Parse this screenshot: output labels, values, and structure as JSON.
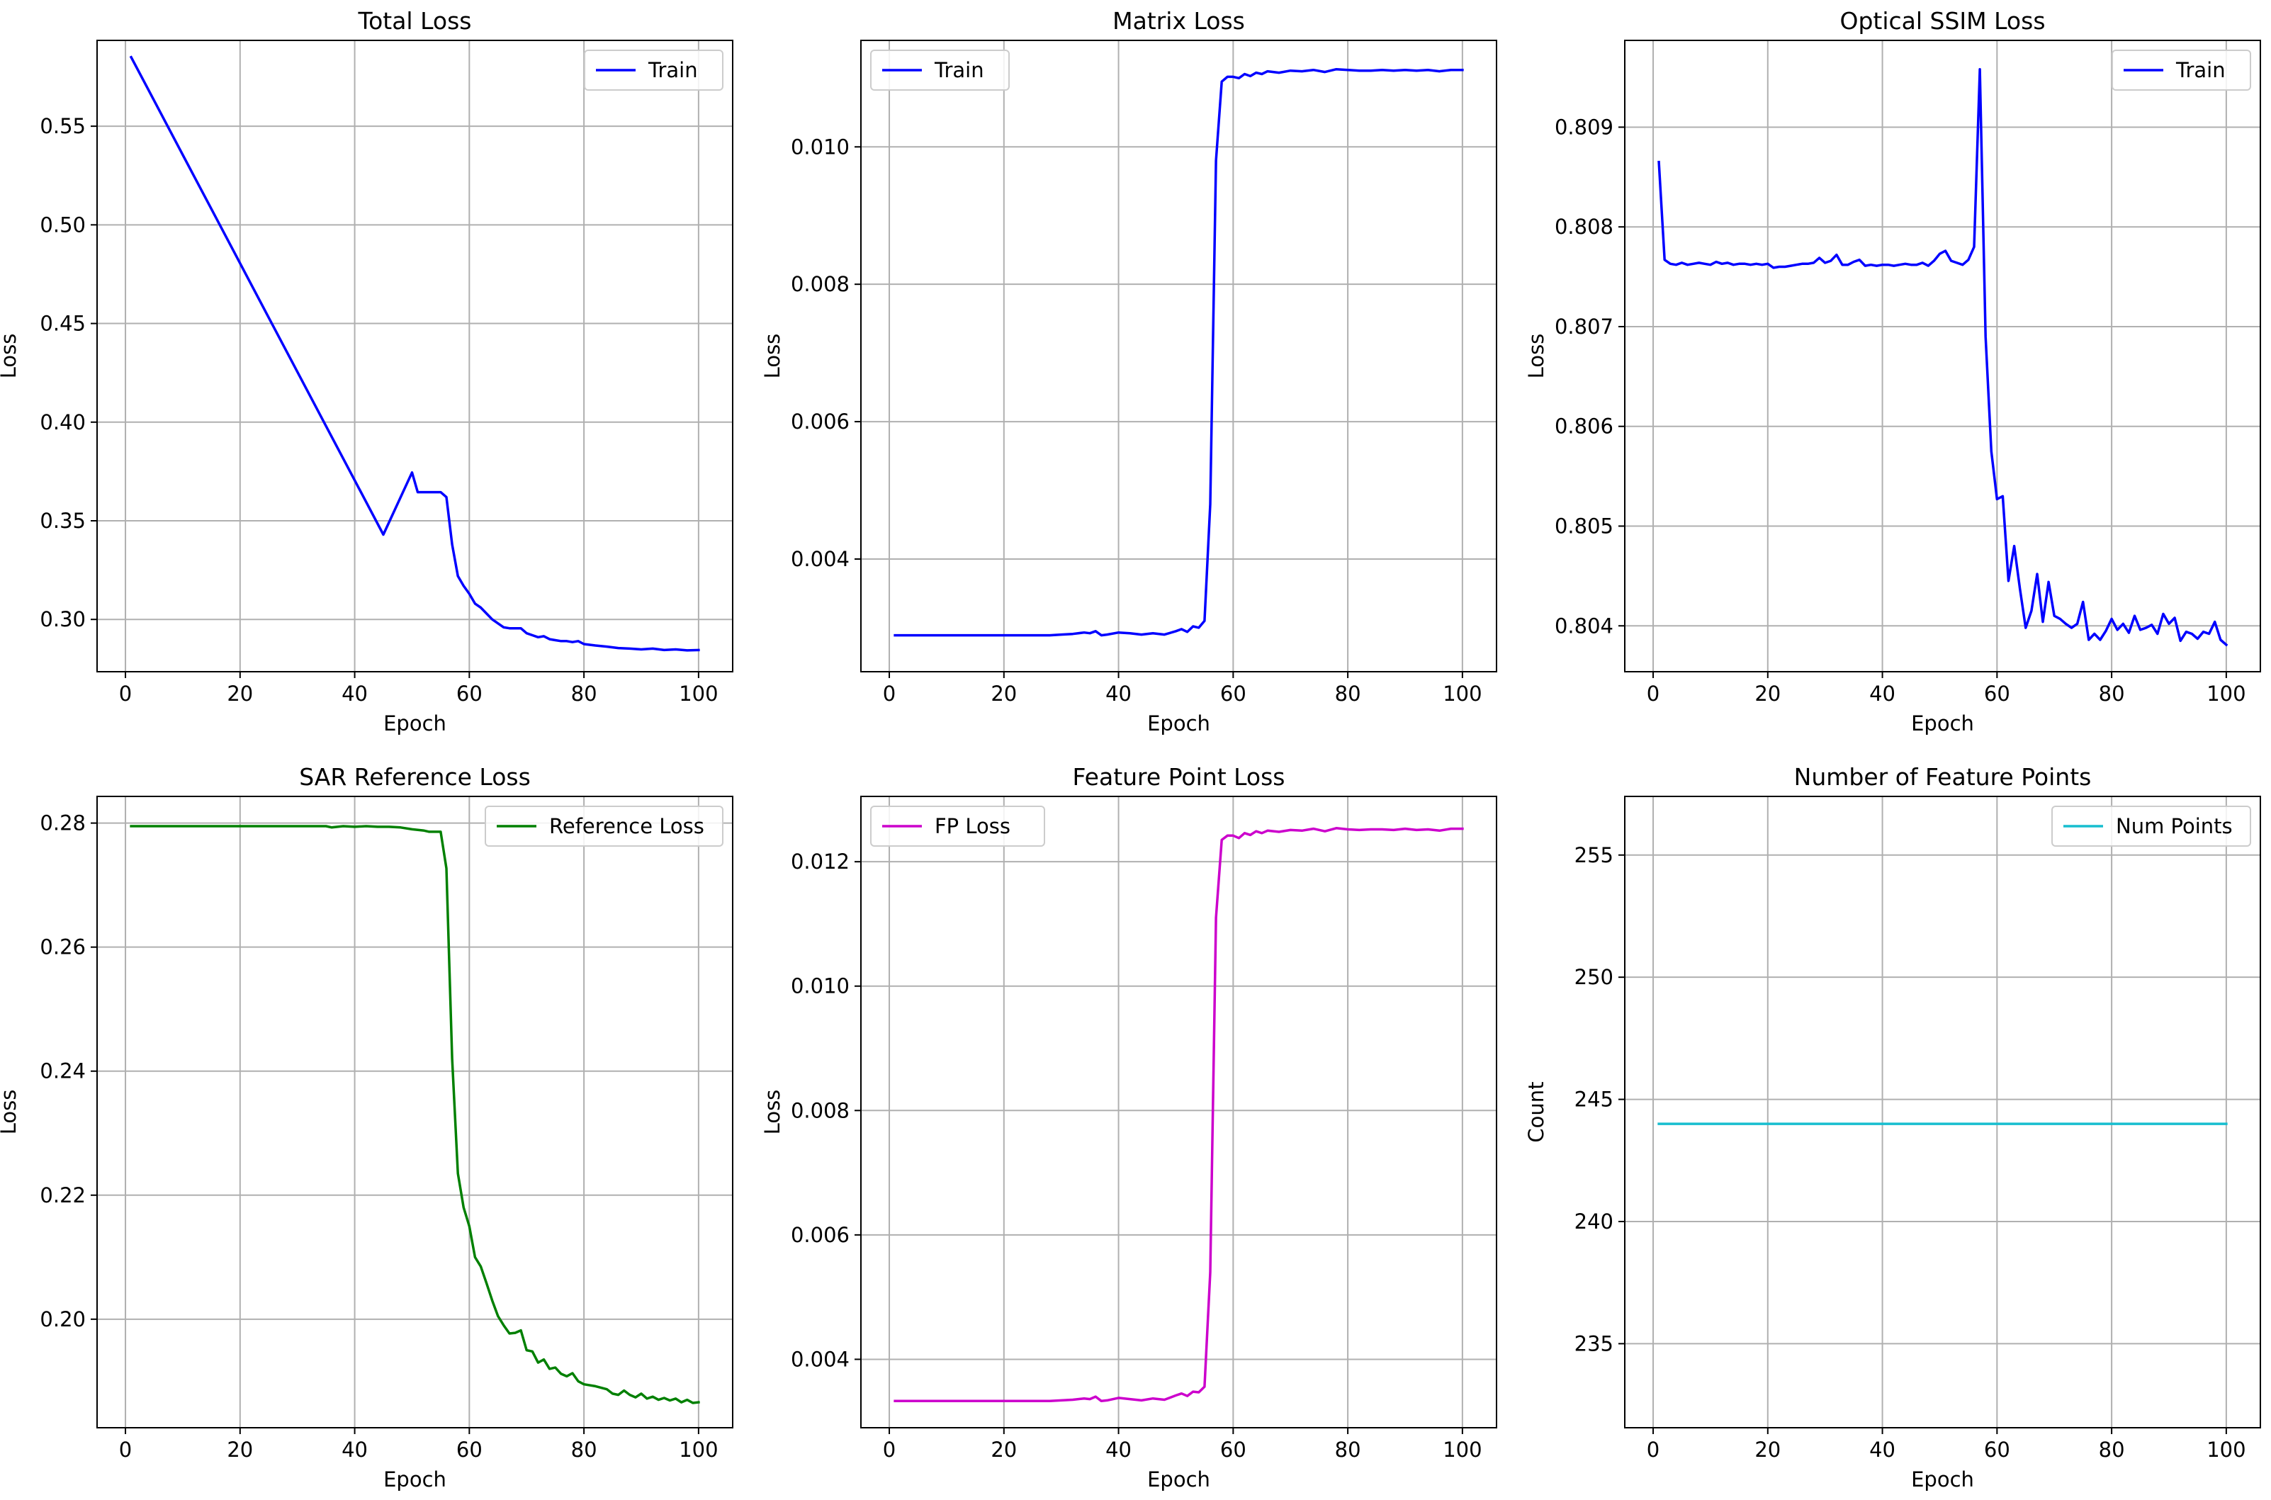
{
  "figure": {
    "background": "#ffffff"
  },
  "chart_data": [
    {
      "type": "line",
      "title": "Total Loss",
      "xlabel": "Epoch",
      "ylabel": "Loss",
      "xlim": [
        -4.95,
        105.95
      ],
      "ylim": [
        0.2735,
        0.5935
      ],
      "xticks": [
        0,
        20,
        40,
        60,
        80,
        100
      ],
      "yticks": [
        0.3,
        0.35,
        0.4,
        0.45,
        0.5,
        0.55
      ],
      "ytick_labels": [
        "0.30",
        "0.35",
        "0.40",
        "0.45",
        "0.50",
        "0.55"
      ],
      "grid": true,
      "legend_position": "top-right",
      "series": [
        {
          "name": "Train",
          "color": "#0000ff",
          "x": [
            1,
            5,
            10,
            15,
            20,
            25,
            30,
            35,
            40,
            45,
            50,
            51,
            52,
            53,
            54,
            55,
            56,
            57,
            58,
            59,
            60,
            61,
            62,
            63,
            64,
            65,
            66,
            67,
            68,
            69,
            70,
            71,
            72,
            73,
            74,
            75,
            76,
            77,
            78,
            79,
            80,
            82,
            84,
            86,
            88,
            90,
            92,
            94,
            96,
            98,
            100
          ],
          "y": [
            0.585,
            0.563,
            0.5355,
            0.508,
            0.4805,
            0.453,
            0.4255,
            0.398,
            0.3705,
            0.343,
            0.3745,
            0.3645,
            0.3645,
            0.3645,
            0.3645,
            0.3645,
            0.362,
            0.338,
            0.322,
            0.317,
            0.313,
            0.308,
            0.306,
            0.303,
            0.3,
            0.298,
            0.296,
            0.2955,
            0.2955,
            0.2955,
            0.293,
            0.292,
            0.291,
            0.2915,
            0.29,
            0.2895,
            0.289,
            0.289,
            0.2885,
            0.289,
            0.2875,
            0.2868,
            0.2862,
            0.2855,
            0.2852,
            0.2848,
            0.2852,
            0.2845,
            0.2848,
            0.2843,
            0.2845
          ]
        }
      ]
    },
    {
      "type": "line",
      "title": "Matrix Loss",
      "xlabel": "Epoch",
      "ylabel": "Loss",
      "xlim": [
        -4.95,
        105.95
      ],
      "ylim": [
        0.00236,
        0.01155
      ],
      "xticks": [
        0,
        20,
        40,
        60,
        80,
        100
      ],
      "yticks": [
        0.004,
        0.006,
        0.008,
        0.01
      ],
      "ytick_labels": [
        "0.004",
        "0.006",
        "0.008",
        "0.010"
      ],
      "grid": true,
      "legend_position": "top-left",
      "series": [
        {
          "name": "Train",
          "color": "#0000ff",
          "x": [
            1,
            5,
            10,
            15,
            20,
            25,
            28,
            30,
            32,
            34,
            35,
            36,
            37,
            38,
            40,
            42,
            44,
            46,
            48,
            50,
            51,
            52,
            53,
            54,
            55,
            56,
            57,
            58,
            59,
            60,
            61,
            62,
            63,
            64,
            65,
            66,
            68,
            70,
            72,
            74,
            76,
            78,
            80,
            82,
            84,
            86,
            88,
            90,
            92,
            94,
            96,
            98,
            100
          ],
          "y": [
            0.00289,
            0.00289,
            0.00289,
            0.00289,
            0.00289,
            0.00289,
            0.00289,
            0.0029,
            0.00291,
            0.00293,
            0.00292,
            0.00295,
            0.00289,
            0.0029,
            0.00293,
            0.00292,
            0.0029,
            0.00292,
            0.0029,
            0.00295,
            0.00298,
            0.00294,
            0.00302,
            0.003,
            0.0031,
            0.0048,
            0.0098,
            0.01095,
            0.01102,
            0.01102,
            0.011,
            0.01106,
            0.01103,
            0.01108,
            0.01106,
            0.0111,
            0.01108,
            0.01111,
            0.0111,
            0.01112,
            0.01109,
            0.01113,
            0.01112,
            0.01111,
            0.01111,
            0.01112,
            0.01111,
            0.01112,
            0.01111,
            0.01112,
            0.0111,
            0.01112,
            0.01112
          ]
        }
      ]
    },
    {
      "type": "line",
      "title": "Optical SSIM Loss",
      "xlabel": "Epoch",
      "ylabel": "Loss",
      "xlim": [
        -4.95,
        105.95
      ],
      "ylim": [
        0.80354,
        0.80987
      ],
      "xticks": [
        0,
        20,
        40,
        60,
        80,
        100
      ],
      "yticks": [
        0.804,
        0.805,
        0.806,
        0.807,
        0.808,
        0.809
      ],
      "ytick_labels": [
        "0.804",
        "0.805",
        "0.806",
        "0.807",
        "0.808",
        "0.809"
      ],
      "grid": true,
      "legend_position": "top-right",
      "series": [
        {
          "name": "Train",
          "color": "#0000ff",
          "x": [
            1,
            2,
            3,
            4,
            5,
            6,
            7,
            8,
            9,
            10,
            11,
            12,
            13,
            14,
            15,
            16,
            17,
            18,
            19,
            20,
            21,
            22,
            23,
            24,
            25,
            26,
            27,
            28,
            29,
            30,
            31,
            32,
            33,
            34,
            35,
            36,
            37,
            38,
            39,
            40,
            41,
            42,
            43,
            44,
            45,
            46,
            47,
            48,
            49,
            50,
            51,
            52,
            53,
            54,
            55,
            56,
            57,
            58,
            59,
            60,
            61,
            62,
            63,
            64,
            65,
            66,
            67,
            68,
            69,
            70,
            71,
            72,
            73,
            74,
            75,
            76,
            77,
            78,
            79,
            80,
            81,
            82,
            83,
            84,
            85,
            86,
            87,
            88,
            89,
            90,
            91,
            92,
            93,
            94,
            95,
            96,
            97,
            98,
            99,
            100
          ],
          "y": [
            0.80865,
            0.80767,
            0.80763,
            0.80762,
            0.80764,
            0.80762,
            0.80763,
            0.80764,
            0.80763,
            0.80762,
            0.80765,
            0.80763,
            0.80764,
            0.80762,
            0.80763,
            0.80763,
            0.80762,
            0.80763,
            0.80762,
            0.80763,
            0.80759,
            0.8076,
            0.8076,
            0.80761,
            0.80762,
            0.80763,
            0.80763,
            0.80764,
            0.80769,
            0.80764,
            0.80766,
            0.80772,
            0.80762,
            0.80762,
            0.80765,
            0.80767,
            0.80761,
            0.80762,
            0.80761,
            0.80762,
            0.80762,
            0.80761,
            0.80762,
            0.80763,
            0.80762,
            0.80762,
            0.80764,
            0.80761,
            0.80766,
            0.80773,
            0.80776,
            0.80766,
            0.80764,
            0.80762,
            0.80767,
            0.8078,
            0.80958,
            0.8069,
            0.80575,
            0.80527,
            0.8053,
            0.80445,
            0.8048,
            0.80437,
            0.80398,
            0.80415,
            0.80452,
            0.80404,
            0.80444,
            0.8041,
            0.80407,
            0.80402,
            0.80398,
            0.80402,
            0.80424,
            0.80386,
            0.80392,
            0.80386,
            0.80395,
            0.80407,
            0.80396,
            0.80402,
            0.80393,
            0.8041,
            0.80396,
            0.80398,
            0.80401,
            0.80392,
            0.80412,
            0.80402,
            0.80408,
            0.80385,
            0.80394,
            0.80392,
            0.80387,
            0.80394,
            0.80392,
            0.80404,
            0.80386,
            0.80381
          ]
        }
      ]
    },
    {
      "type": "line",
      "title": "SAR Reference Loss",
      "xlabel": "Epoch",
      "ylabel": "Loss",
      "xlim": [
        -4.95,
        105.95
      ],
      "ylim": [
        0.1825,
        0.2843
      ],
      "xticks": [
        0,
        20,
        40,
        60,
        80,
        100
      ],
      "yticks": [
        0.2,
        0.22,
        0.24,
        0.26,
        0.28
      ],
      "ytick_labels": [
        "0.20",
        "0.22",
        "0.24",
        "0.26",
        "0.28"
      ],
      "grid": true,
      "legend_position": "top-right",
      "series": [
        {
          "name": "Reference Loss",
          "color": "#008000",
          "x": [
            1,
            5,
            10,
            15,
            20,
            25,
            30,
            35,
            36,
            38,
            40,
            42,
            44,
            46,
            48,
            50,
            52,
            53,
            54,
            55,
            56,
            57,
            58,
            59,
            60,
            61,
            62,
            63,
            64,
            65,
            66,
            67,
            68,
            69,
            70,
            71,
            72,
            73,
            74,
            75,
            76,
            77,
            78,
            79,
            80,
            82,
            84,
            85,
            86,
            87,
            88,
            89,
            90,
            91,
            92,
            93,
            94,
            95,
            96,
            97,
            98,
            99,
            100
          ],
          "y": [
            0.2795,
            0.2795,
            0.2795,
            0.2795,
            0.2795,
            0.2795,
            0.2795,
            0.2795,
            0.2793,
            0.2795,
            0.2794,
            0.2795,
            0.2794,
            0.2794,
            0.2793,
            0.279,
            0.2788,
            0.2786,
            0.2786,
            0.2786,
            0.2727,
            0.242,
            0.2235,
            0.218,
            0.215,
            0.21,
            0.2085,
            0.2058,
            0.203,
            0.2005,
            0.199,
            0.1977,
            0.1978,
            0.1982,
            0.195,
            0.1948,
            0.193,
            0.1935,
            0.192,
            0.1922,
            0.1912,
            0.1908,
            0.1913,
            0.19,
            0.1895,
            0.1892,
            0.1887,
            0.188,
            0.1878,
            0.1885,
            0.1878,
            0.1874,
            0.188,
            0.1872,
            0.1875,
            0.187,
            0.1873,
            0.1869,
            0.1872,
            0.1866,
            0.187,
            0.1865,
            0.1866
          ]
        }
      ]
    },
    {
      "type": "line",
      "title": "Feature Point Loss",
      "xlabel": "Epoch",
      "ylabel": "Loss",
      "xlim": [
        -4.95,
        105.95
      ],
      "ylim": [
        0.0029,
        0.01305
      ],
      "xticks": [
        0,
        20,
        40,
        60,
        80,
        100
      ],
      "yticks": [
        0.004,
        0.006,
        0.008,
        0.01,
        0.012
      ],
      "ytick_labels": [
        "0.004",
        "0.006",
        "0.008",
        "0.010",
        "0.012"
      ],
      "grid": true,
      "legend_position": "top-left",
      "series": [
        {
          "name": "FP Loss",
          "color": "#cc00cc",
          "x": [
            1,
            5,
            10,
            15,
            20,
            25,
            28,
            30,
            32,
            34,
            35,
            36,
            37,
            38,
            40,
            42,
            44,
            46,
            48,
            50,
            51,
            52,
            53,
            54,
            55,
            56,
            57,
            58,
            59,
            60,
            61,
            62,
            63,
            64,
            65,
            66,
            68,
            70,
            72,
            74,
            76,
            78,
            80,
            82,
            84,
            86,
            88,
            90,
            92,
            94,
            96,
            98,
            100
          ],
          "y": [
            0.00333,
            0.00333,
            0.00333,
            0.00333,
            0.00333,
            0.00333,
            0.00333,
            0.00334,
            0.00335,
            0.00337,
            0.00336,
            0.0034,
            0.00333,
            0.00334,
            0.00338,
            0.00336,
            0.00334,
            0.00337,
            0.00335,
            0.00342,
            0.00345,
            0.00341,
            0.00348,
            0.00347,
            0.00356,
            0.0054,
            0.0111,
            0.01235,
            0.01242,
            0.01242,
            0.01238,
            0.01246,
            0.01243,
            0.01249,
            0.01246,
            0.0125,
            0.01248,
            0.01251,
            0.0125,
            0.01253,
            0.01249,
            0.01254,
            0.01252,
            0.01251,
            0.01252,
            0.01252,
            0.01251,
            0.01253,
            0.01251,
            0.01252,
            0.0125,
            0.01253,
            0.01253
          ]
        }
      ]
    },
    {
      "type": "line",
      "title": "Number of Feature Points",
      "xlabel": "Epoch",
      "ylabel": "Count",
      "xlim": [
        -4.95,
        105.95
      ],
      "ylim": [
        231.56,
        257.4
      ],
      "xticks": [
        0,
        20,
        40,
        60,
        80,
        100
      ],
      "yticks": [
        235,
        240,
        245,
        250,
        255
      ],
      "ytick_labels": [
        "235",
        "240",
        "245",
        "250",
        "255"
      ],
      "grid": true,
      "legend_position": "top-right",
      "series": [
        {
          "name": "Num Points",
          "color": "#17becf",
          "x": [
            1,
            100
          ],
          "y": [
            244,
            244
          ]
        }
      ]
    }
  ]
}
